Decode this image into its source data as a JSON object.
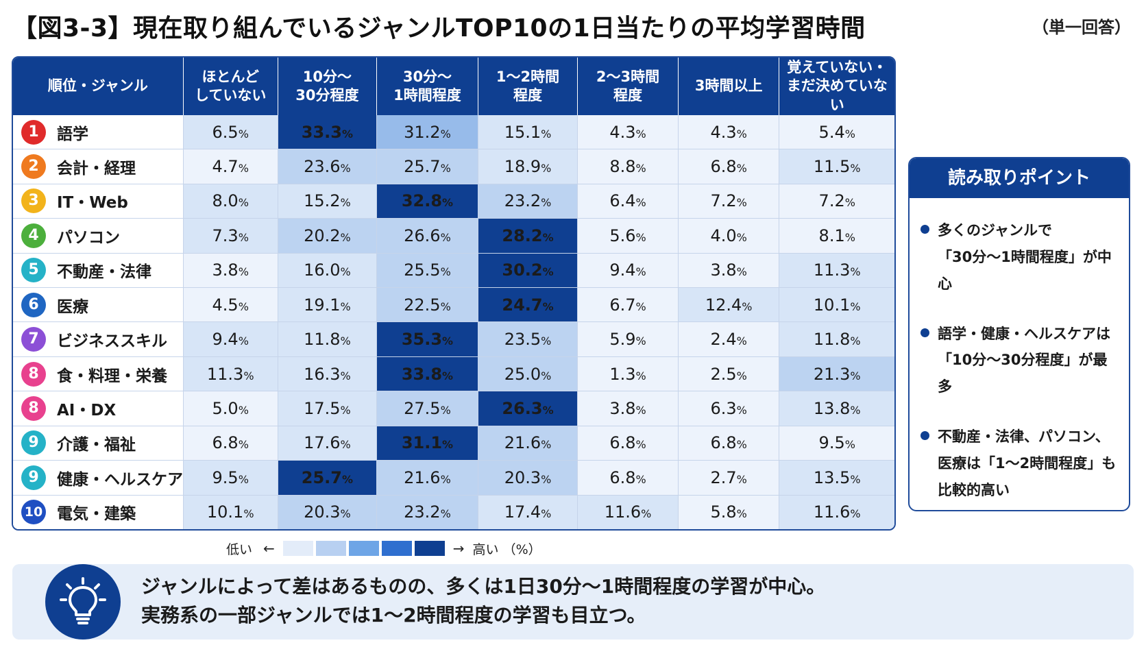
{
  "title": "【図3-3】現在取り組んでいるジャンルTOP10の1日当たりの平均学習時間",
  "answer_type": "（単一回答）",
  "colors": {
    "header_bg": "#0f3f91",
    "level_1": "#edf3fc",
    "level_2": "#d7e5f7",
    "level_3": "#bcd3f1",
    "level_4": "#97bbea",
    "level_5": "#0f3f91"
  },
  "chart_data": {
    "type": "table",
    "corner_header": "順位・ジャンル",
    "columns": [
      "ほとんど\nしていない",
      "10分〜\n30分程度",
      "30分〜\n1時間程度",
      "1〜2時間\n程度",
      "2〜3時間\n程度",
      "3時間以上",
      "覚えていない・\nまだ決めていない"
    ],
    "unit": "%",
    "rows": [
      {
        "rank": "1",
        "rank_color": "#e02b2b",
        "genre": "語学",
        "values": [
          6.5,
          33.3,
          31.2,
          15.1,
          4.3,
          4.3,
          5.4
        ],
        "levels": [
          2,
          5,
          4,
          2,
          1,
          1,
          1
        ]
      },
      {
        "rank": "2",
        "rank_color": "#ef7a1f",
        "genre": "会計・経理",
        "values": [
          4.7,
          23.6,
          25.7,
          18.9,
          8.8,
          6.8,
          11.5
        ],
        "levels": [
          1,
          3,
          3,
          2,
          1,
          1,
          2
        ]
      },
      {
        "rank": "3",
        "rank_color": "#f2b31b",
        "genre": "IT・Web",
        "values": [
          8.0,
          15.2,
          32.8,
          23.2,
          6.4,
          7.2,
          7.2
        ],
        "levels": [
          2,
          2,
          5,
          3,
          1,
          1,
          1
        ]
      },
      {
        "rank": "4",
        "rank_color": "#4caf3c",
        "genre": "パソコン",
        "values": [
          7.3,
          20.2,
          26.6,
          28.2,
          5.6,
          4.0,
          8.1
        ],
        "levels": [
          2,
          3,
          3,
          5,
          1,
          1,
          1
        ]
      },
      {
        "rank": "5",
        "rank_color": "#25b2c7",
        "genre": "不動産・法律",
        "values": [
          3.8,
          16.0,
          25.5,
          30.2,
          9.4,
          3.8,
          11.3
        ],
        "levels": [
          1,
          2,
          3,
          5,
          1,
          1,
          2
        ]
      },
      {
        "rank": "6",
        "rank_color": "#1f66c2",
        "genre": "医療",
        "values": [
          4.5,
          19.1,
          22.5,
          24.7,
          6.7,
          12.4,
          10.1
        ],
        "levels": [
          1,
          2,
          3,
          5,
          1,
          2,
          2
        ]
      },
      {
        "rank": "7",
        "rank_color": "#8c4fd6",
        "genre": "ビジネススキル",
        "values": [
          9.4,
          11.8,
          35.3,
          23.5,
          5.9,
          2.4,
          11.8
        ],
        "levels": [
          2,
          2,
          5,
          3,
          1,
          1,
          2
        ]
      },
      {
        "rank": "8",
        "rank_color": "#e8418e",
        "genre": "食・料理・栄養",
        "values": [
          11.3,
          16.3,
          33.8,
          25.0,
          1.3,
          2.5,
          21.3
        ],
        "levels": [
          2,
          2,
          5,
          3,
          1,
          1,
          3
        ]
      },
      {
        "rank": "8",
        "rank_color": "#e8418e",
        "genre": "AI・DX",
        "values": [
          5.0,
          17.5,
          27.5,
          26.3,
          3.8,
          6.3,
          13.8
        ],
        "levels": [
          1,
          2,
          3,
          5,
          1,
          1,
          2
        ]
      },
      {
        "rank": "9",
        "rank_color": "#25b2c7",
        "genre": "介護・福祉",
        "values": [
          6.8,
          17.6,
          31.1,
          21.6,
          6.8,
          6.8,
          9.5
        ],
        "levels": [
          1,
          2,
          5,
          3,
          1,
          1,
          1
        ]
      },
      {
        "rank": "9",
        "rank_color": "#25b2c7",
        "genre": "健康・ヘルスケア",
        "values": [
          9.5,
          25.7,
          21.6,
          20.3,
          6.8,
          2.7,
          13.5
        ],
        "levels": [
          2,
          5,
          3,
          3,
          1,
          1,
          2
        ]
      },
      {
        "rank": "10",
        "rank_color": "#1f4fc2",
        "genre": "電気・建築",
        "values": [
          10.1,
          20.3,
          23.2,
          17.4,
          11.6,
          5.8,
          11.6
        ],
        "levels": [
          2,
          3,
          3,
          2,
          2,
          1,
          2
        ]
      }
    ]
  },
  "legend": {
    "low": "低い",
    "left_arrow": "←",
    "right_arrow": "→",
    "high": "高い",
    "unit": "（%）"
  },
  "points": {
    "heading": "読み取りポイント",
    "items": [
      "多くのジャンルで\n「30分〜1時間程度」が中心",
      "語学・健康・ヘルスケアは\n「10分〜30分程度」が最多",
      "不動産・法律、パソコン、\n医療は「1〜2時間程度」も\n比較的高い"
    ]
  },
  "summary": {
    "icon": "lightbulb-icon",
    "lines": [
      "ジャンルによって差はあるものの、多くは1日30分〜1時間程度の学習が中心。",
      "実務系の一部ジャンルでは1〜2時間程度の学習も目立つ。"
    ]
  }
}
